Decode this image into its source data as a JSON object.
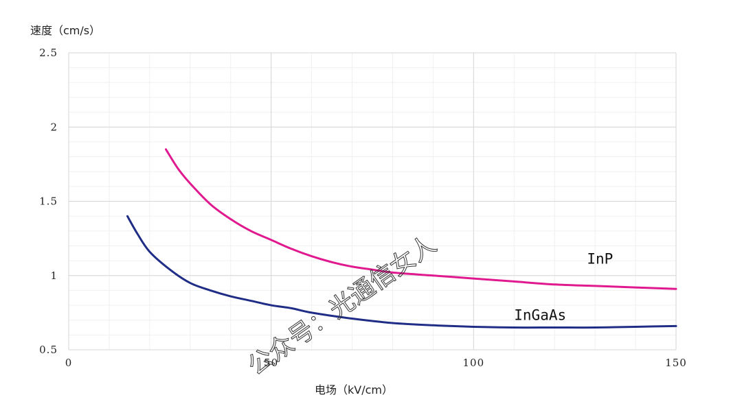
{
  "chart_data": {
    "type": "line",
    "title": "",
    "xlabel": "电场（kV/cm）",
    "ylabel": "速度（cm/s）",
    "xlim": [
      0,
      150
    ],
    "ylim": [
      0.5,
      2.5
    ],
    "x_ticks": [
      0,
      50,
      100,
      150
    ],
    "x_tick_labels": [
      "0",
      "50",
      "100",
      "150"
    ],
    "y_ticks": [
      0.5,
      1,
      1.5,
      2,
      2.5
    ],
    "y_tick_labels": [
      "0.5",
      "1",
      "1.5",
      "2",
      "2.5"
    ],
    "grid": true,
    "legend": "none",
    "series": [
      {
        "name": "InP",
        "color": "#e0198f",
        "label_at": [
          128,
          1.08
        ],
        "points": [
          [
            24,
            1.85
          ],
          [
            27,
            1.72
          ],
          [
            30,
            1.62
          ],
          [
            35,
            1.48
          ],
          [
            40,
            1.38
          ],
          [
            45,
            1.3
          ],
          [
            50,
            1.24
          ],
          [
            55,
            1.18
          ],
          [
            60,
            1.13
          ],
          [
            65,
            1.09
          ],
          [
            70,
            1.06
          ],
          [
            75,
            1.04
          ],
          [
            80,
            1.02
          ],
          [
            90,
            1.0
          ],
          [
            100,
            0.98
          ],
          [
            110,
            0.96
          ],
          [
            120,
            0.94
          ],
          [
            130,
            0.93
          ],
          [
            140,
            0.92
          ],
          [
            150,
            0.91
          ]
        ]
      },
      {
        "name": "InGaAs",
        "color": "#1f2d86",
        "label_at": [
          110,
          0.7
        ],
        "points": [
          [
            14.5,
            1.4
          ],
          [
            17,
            1.28
          ],
          [
            20,
            1.16
          ],
          [
            25,
            1.04
          ],
          [
            30,
            0.95
          ],
          [
            35,
            0.9
          ],
          [
            40,
            0.86
          ],
          [
            45,
            0.83
          ],
          [
            50,
            0.8
          ],
          [
            55,
            0.78
          ],
          [
            60,
            0.75
          ],
          [
            70,
            0.71
          ],
          [
            80,
            0.68
          ],
          [
            90,
            0.665
          ],
          [
            100,
            0.655
          ],
          [
            110,
            0.65
          ],
          [
            120,
            0.65
          ],
          [
            130,
            0.65
          ],
          [
            140,
            0.655
          ],
          [
            150,
            0.66
          ]
        ]
      }
    ]
  },
  "watermark": {
    "text": "公众号：光通信女人"
  }
}
